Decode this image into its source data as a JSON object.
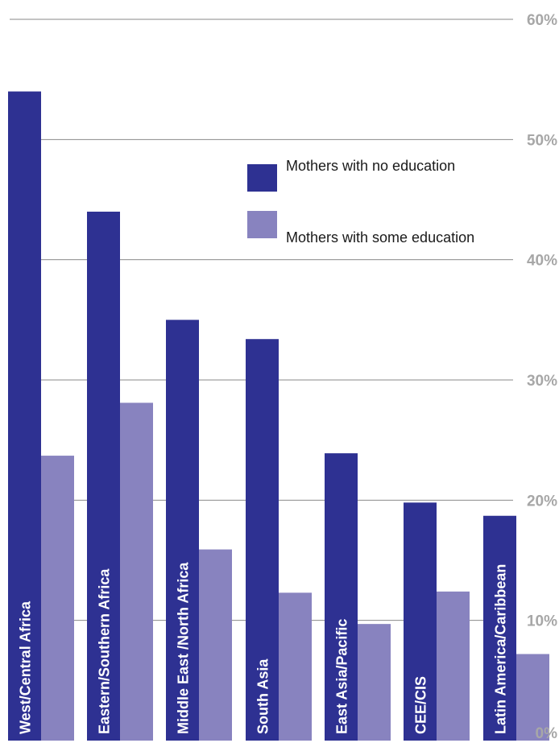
{
  "chart_data": {
    "type": "bar",
    "categories": [
      "West/Central Africa",
      "Eastern/Southern Africa",
      "Middle East /North Africa",
      "South Asia",
      "East Asia/Pacific",
      "CEE/CIS",
      "Latin America/Caribbean"
    ],
    "series": [
      {
        "name": "Mothers with no education",
        "color": "#2e3192",
        "values": [
          54,
          44,
          35,
          33.4,
          23.9,
          19.8,
          18.7
        ]
      },
      {
        "name": "Mothers with some education",
        "color": "#8883bf",
        "values": [
          23.7,
          28.1,
          15.9,
          12.3,
          9.7,
          12.4,
          7.2
        ]
      }
    ],
    "y_ticks": [
      "0%",
      "10%",
      "20%",
      "30%",
      "40%",
      "50%",
      "60%"
    ],
    "ylim": [
      0,
      60
    ],
    "grid": true,
    "legend_position": "top-right",
    "title": "",
    "xlabel": "",
    "ylabel": ""
  }
}
